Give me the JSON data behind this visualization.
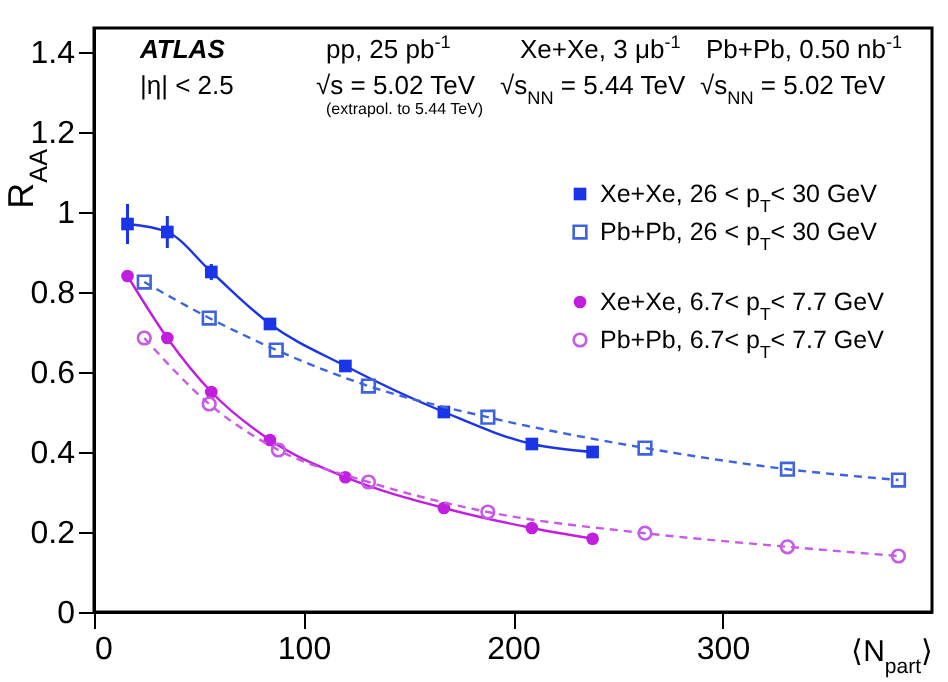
{
  "chart_data": {
    "type": "line",
    "xlabel": "⟨N$_{part}$⟩",
    "ylabel": "R$_{AA}$",
    "xlim": [
      0,
      400
    ],
    "xticks": [
      0,
      100,
      200,
      300
    ],
    "ylim": [
      0,
      1.46
    ],
    "yticks": [
      {
        "value": 0,
        "label": "0"
      },
      0.2,
      0.4,
      0.6,
      0.8,
      {
        "value": 1,
        "label": "1"
      },
      1.2,
      1.4
    ],
    "legend": "right",
    "grid": false,
    "annotations": [
      "ATLAS",
      "|η| < 2.5",
      "pp, 25 pb$^{-1}$",
      "√s = 5.02 TeV",
      "(extrapol. to 5.44 TeV)",
      "Xe+Xe, 3 μb$^{-1}$",
      "√s$_{NN}$ = 5.44 TeV",
      "Pb+Pb, 0.50 nb$^{-1}$",
      "√s$_{NN}$ = 5.02 TeV"
    ],
    "series": [
      {
        "name": "Xe+Xe, 26 < p$_{T}$< 30 GeV",
        "color": "#1a35e8",
        "marker": "square",
        "line_style": "solid",
        "x": [
          16,
          35,
          56,
          84,
          120,
          167,
          209,
          238
        ],
        "values": [
          0.97,
          0.95,
          0.85,
          0.72,
          0.615,
          0.5,
          0.42,
          0.4
        ],
        "errors": [
          0.05,
          0.04,
          0.02,
          null,
          null,
          null,
          null,
          null
        ]
      },
      {
        "name": "Pb+Pb, 26 < p$_{T}$< 30 GeV",
        "color": "#3d63e0",
        "marker": "square",
        "line_style": "dashed",
        "x": [
          24,
          55,
          87,
          131,
          188,
          263,
          331,
          384
        ],
        "values": [
          0.825,
          0.735,
          0.655,
          0.565,
          0.487,
          0.41,
          0.357,
          0.33
        ]
      },
      {
        "name": "Xe+Xe, 6.7< p$_{T}$< 7.7 GeV",
        "color": "#c21ee0",
        "marker": "circle",
        "line_style": "solid",
        "x": [
          16,
          35,
          56,
          84,
          120,
          167,
          209,
          238
        ],
        "values": [
          0.84,
          0.685,
          0.55,
          0.43,
          0.337,
          0.26,
          0.21,
          0.183
        ]
      },
      {
        "name": "Pb+Pb, 6.7< p$_{T}$< 7.7 GeV",
        "color": "#c85ae6",
        "marker": "circle",
        "line_style": "dashed",
        "x": [
          24,
          55,
          88,
          131,
          188,
          263,
          331,
          384
        ],
        "values": [
          0.685,
          0.52,
          0.405,
          0.325,
          0.25,
          0.197,
          0.163,
          0.14
        ]
      }
    ]
  }
}
